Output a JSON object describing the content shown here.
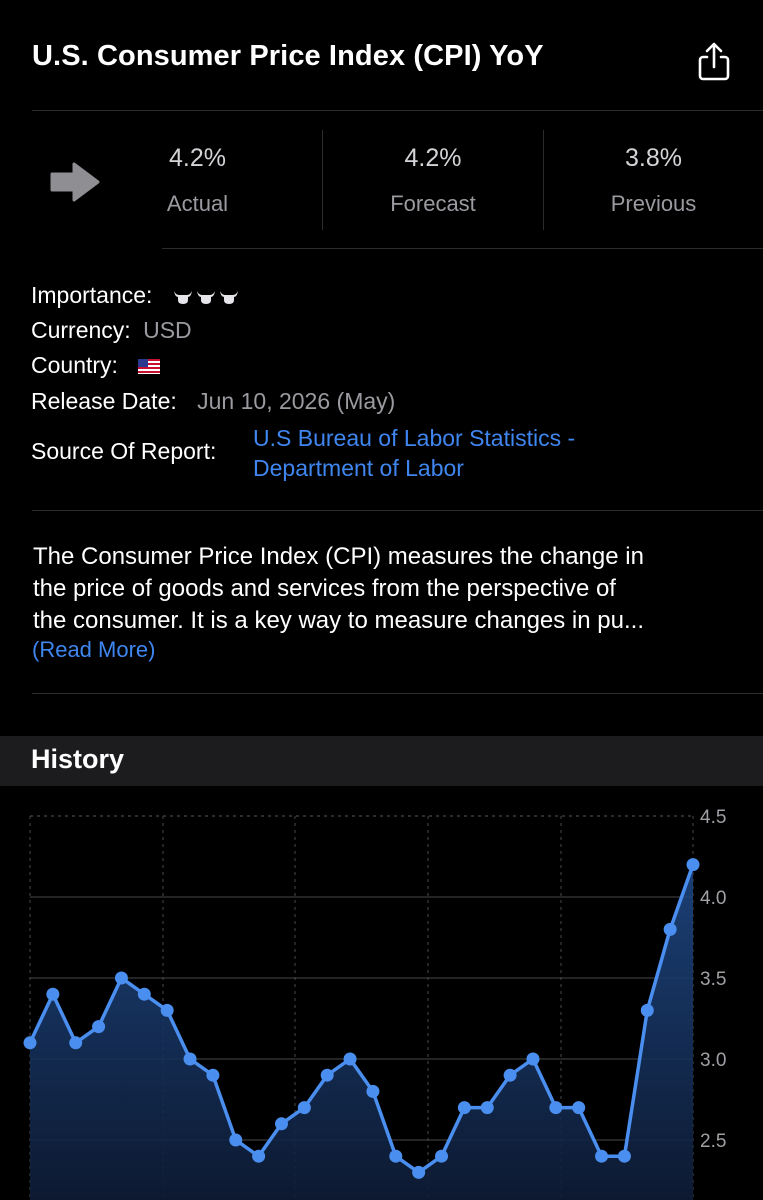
{
  "header": {
    "title": "U.S. Consumer Price Index (CPI) YoY"
  },
  "stats": {
    "actual": {
      "value": "4.2%",
      "label": "Actual"
    },
    "forecast": {
      "value": "4.2%",
      "label": "Forecast"
    },
    "previous": {
      "value": "3.8%",
      "label": "Previous"
    },
    "trend_icon": "right-arrow-icon"
  },
  "details": {
    "importance_label": "Importance:",
    "importance_icons": "bull-icons",
    "currency_label": "Currency:",
    "currency_value": "USD",
    "country_label": "Country:",
    "country_flag": "us-flag-icon",
    "release_label": "Release Date:",
    "release_value": "Jun 10, 2026 (May)",
    "source_label": "Source Of Report:",
    "source_line1": "U.S Bureau of Labor Statistics -",
    "source_line2": "Department of Labor"
  },
  "description": {
    "line1": "The Consumer Price Index (CPI) measures the change in",
    "line2": "the price of goods and services from the perspective of",
    "line3": "the consumer. It is a key way to measure changes in pu...",
    "read_more": "(Read More)"
  },
  "history": {
    "title": "History"
  },
  "colors": {
    "accent": "#3f86f0",
    "background": "#000000",
    "muted": "#9a9aa0"
  },
  "chart_data": {
    "type": "area",
    "title": "",
    "xlabel": "",
    "ylabel": "",
    "ylim": [
      2.2,
      4.5
    ],
    "yticks": [
      "4.5",
      "4.0",
      "3.5",
      "3.0",
      "2.5"
    ],
    "grid": true,
    "series": [
      {
        "values": [
          3.1,
          3.4,
          3.1,
          3.2,
          3.5,
          3.4,
          3.3,
          3.0,
          2.9,
          2.5,
          2.4,
          2.6,
          2.7,
          2.9,
          3.0,
          2.8,
          2.4,
          2.3,
          2.4,
          2.7,
          2.7,
          2.9,
          3.0,
          2.7,
          2.7,
          2.4,
          2.4,
          3.3,
          3.8,
          4.2
        ]
      }
    ]
  }
}
